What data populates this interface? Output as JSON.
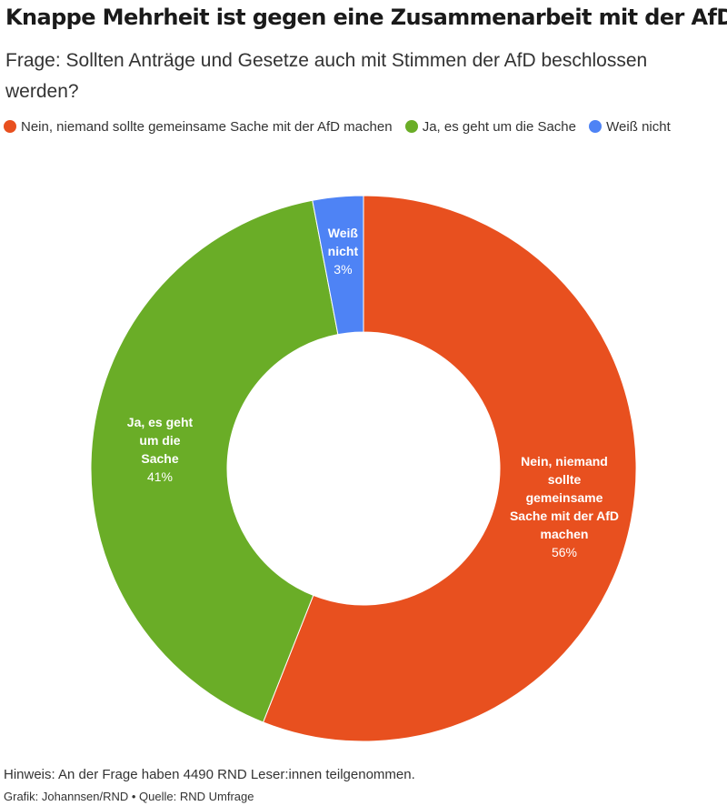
{
  "header": {
    "title": "Knappe Mehrheit ist gegen eine Zusammenarbeit mit der AfD",
    "subtitle": "Frage: Sollten Anträge und Gesetze auch mit Stimmen der AfD beschlossen werden?"
  },
  "legend": [
    {
      "label": "Nein, niemand sollte gemeinsame Sache mit der AfD machen",
      "color": "#e8501f"
    },
    {
      "label": "Ja, es geht um die Sache",
      "color": "#6aad27"
    },
    {
      "label": "Weiß nicht",
      "color": "#4e83f5"
    }
  ],
  "chart_data": {
    "type": "pie",
    "variant": "donut",
    "categories": [
      "Nein, niemand sollte gemeinsame Sache mit der AfD machen",
      "Ja, es geht um die Sache",
      "Weiß nicht"
    ],
    "values": [
      56,
      41,
      3
    ],
    "unit": "%",
    "colors": [
      "#e8501f",
      "#6aad27",
      "#4e83f5"
    ],
    "slice_labels": [
      {
        "lines": [
          "Nein, niemand",
          "sollte",
          "gemeinsame",
          "Sache mit der AfD",
          "machen"
        ],
        "value": "56%"
      },
      {
        "lines": [
          "Ja, es geht",
          "um die",
          "Sache"
        ],
        "value": "41%"
      },
      {
        "lines": [
          "Weiß",
          "nicht"
        ],
        "value": "3%"
      }
    ],
    "legend_position": "top"
  },
  "footer": {
    "note": "Hinweis: An der Frage haben 4490 RND Leser:innen teilgenommen.",
    "credit": "Grafik: Johannsen/RND • Quelle: RND Umfrage"
  }
}
